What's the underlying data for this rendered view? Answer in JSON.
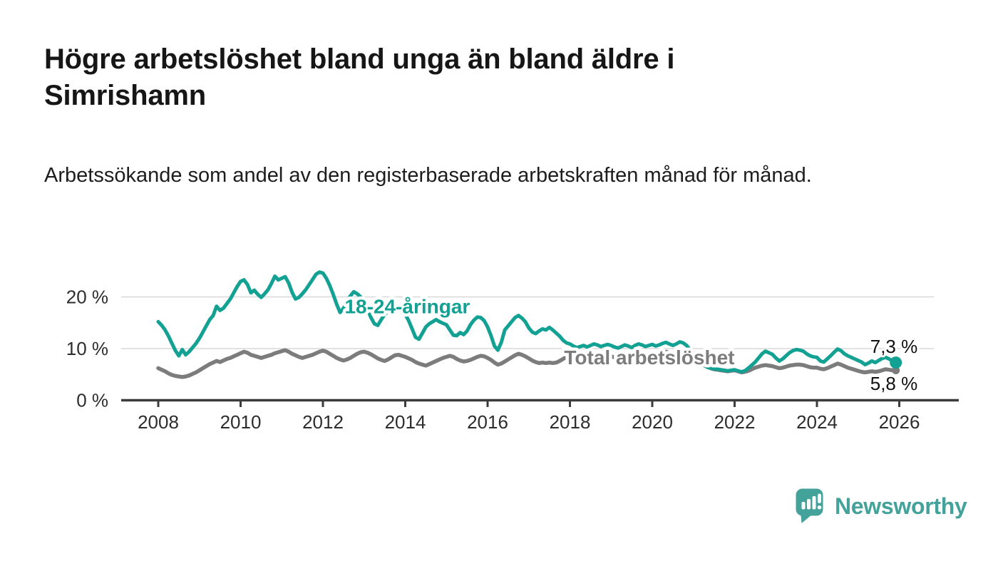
{
  "header": {
    "title": "Högre arbetslöshet bland unga än bland äldre i Simrishamn",
    "subtitle": "Arbetssökande som andel av den registerbaserade arbetskraften månad för månad."
  },
  "footer": {
    "brand": "Newsworthy",
    "logo_icon": "speech-bubble-bar-chart-icon"
  },
  "colors": {
    "youth_line": "#12a192",
    "total_line": "#7c7c7c",
    "axis": "#3c3c3c",
    "grid": "#d8d8d8",
    "tick_text": "#2d2d2d",
    "annotation_text": "#111111",
    "brand_teal": "#43a29a",
    "background": "#ffffff"
  },
  "chart_data": {
    "type": "line",
    "title": "Högre arbetslöshet bland unga än bland äldre i Simrishamn",
    "subtitle": "Arbetssökande som andel av den registerbaserade arbetskraften månad för månad.",
    "unit": "%",
    "x_axis": {
      "start_year": 2008,
      "step_months": 1,
      "end": "2025-12",
      "tick_years": [
        2008,
        2010,
        2012,
        2014,
        2016,
        2018,
        2020,
        2022,
        2024,
        2026
      ]
    },
    "y_axis": {
      "ylim": [
        0,
        26
      ],
      "ticks": [
        {
          "value": 0,
          "label": "0 %"
        },
        {
          "value": 10,
          "label": "10 %"
        },
        {
          "value": 20,
          "label": "20 %"
        }
      ]
    },
    "grid": true,
    "legend_position": "inline-labels",
    "annotations": [
      {
        "text": "7,3 %",
        "year": 2025.87,
        "value": 9.2
      },
      {
        "text": "5,8 %",
        "year": 2025.87,
        "value": 2.0
      }
    ],
    "series": [
      {
        "name": "Total arbetslöshet",
        "color": "#7c7c7c",
        "stroke_width": 5.5,
        "end_dot_radius": 5.5,
        "end_value_label": "5,8 %",
        "label_at": {
          "year": 2019.93,
          "value": 7.0
        },
        "values": [
          6.2,
          5.9,
          5.6,
          5.2,
          4.9,
          4.7,
          4.6,
          4.5,
          4.6,
          4.8,
          5.1,
          5.4,
          5.8,
          6.2,
          6.6,
          7.0,
          7.3,
          7.6,
          7.4,
          7.7,
          8.0,
          8.2,
          8.5,
          8.8,
          9.1,
          9.4,
          9.2,
          8.8,
          8.6,
          8.4,
          8.2,
          8.4,
          8.6,
          8.8,
          9.1,
          9.3,
          9.5,
          9.7,
          9.4,
          9.0,
          8.7,
          8.4,
          8.2,
          8.4,
          8.6,
          8.8,
          9.1,
          9.4,
          9.6,
          9.4,
          9.0,
          8.6,
          8.2,
          7.9,
          7.7,
          7.9,
          8.2,
          8.6,
          9.0,
          9.3,
          9.4,
          9.2,
          8.9,
          8.5,
          8.1,
          7.8,
          7.6,
          7.9,
          8.3,
          8.7,
          8.8,
          8.6,
          8.4,
          8.1,
          7.8,
          7.4,
          7.1,
          6.9,
          6.7,
          7.0,
          7.3,
          7.6,
          7.9,
          8.2,
          8.4,
          8.6,
          8.4,
          8.0,
          7.7,
          7.5,
          7.6,
          7.8,
          8.1,
          8.4,
          8.6,
          8.5,
          8.2,
          7.8,
          7.3,
          6.9,
          7.1,
          7.5,
          7.9,
          8.3,
          8.7,
          9.0,
          8.8,
          8.5,
          8.1,
          7.7,
          7.4,
          7.2,
          7.3,
          7.2,
          7.3,
          7.2,
          7.3,
          7.6,
          8.0,
          8.4,
          8.8,
          8.6,
          8.4,
          8.2,
          8.3,
          8.2,
          8.4,
          8.6,
          8.5,
          8.4,
          8.5,
          8.6,
          8.5,
          8.3,
          8.2,
          8.4,
          8.6,
          8.5,
          8.3,
          8.5,
          8.7,
          8.6,
          8.5,
          8.6,
          8.8,
          8.6,
          8.8,
          9.2,
          9.4,
          9.2,
          9.0,
          9.1,
          9.2,
          9.0,
          8.7,
          8.4,
          8.0,
          7.6,
          7.2,
          6.8,
          6.5,
          6.2,
          6.0,
          5.9,
          5.8,
          5.7,
          5.6,
          5.7,
          5.8,
          5.6,
          5.4,
          5.5,
          5.7,
          6.0,
          6.3,
          6.5,
          6.7,
          6.8,
          6.7,
          6.6,
          6.4,
          6.2,
          6.3,
          6.5,
          6.7,
          6.8,
          6.9,
          6.9,
          6.8,
          6.6,
          6.4,
          6.3,
          6.3,
          6.1,
          6.0,
          6.2,
          6.5,
          6.8,
          7.1,
          6.9,
          6.6,
          6.3,
          6.1,
          5.9,
          5.7,
          5.5,
          5.4,
          5.5,
          5.6,
          5.5,
          5.6,
          5.8,
          6.0,
          5.9,
          5.8,
          5.8
        ]
      },
      {
        "name": "18-24-åringar",
        "color": "#12a192",
        "stroke_width": 5,
        "end_dot_radius": 8.5,
        "end_value_label": "7,3 %",
        "label_at": {
          "year": 2014.05,
          "value": 16.8
        },
        "values": [
          15.2,
          14.5,
          13.6,
          12.4,
          11.0,
          9.6,
          8.6,
          9.8,
          8.8,
          9.4,
          10.2,
          11.0,
          12.0,
          13.2,
          14.4,
          15.6,
          16.4,
          18.2,
          17.4,
          17.8,
          18.7,
          19.6,
          20.8,
          22.0,
          23.0,
          23.3,
          22.4,
          20.8,
          21.3,
          20.5,
          19.9,
          20.6,
          21.4,
          22.6,
          24.0,
          23.3,
          23.6,
          23.9,
          22.7,
          20.9,
          19.6,
          19.9,
          20.6,
          21.4,
          22.4,
          23.4,
          24.4,
          24.8,
          24.6,
          23.6,
          22.2,
          20.5,
          18.6,
          17.0,
          17.8,
          19.2,
          20.2,
          21.0,
          20.6,
          20.0,
          19.0,
          17.6,
          16.0,
          14.8,
          14.5,
          15.6,
          16.6,
          17.2,
          17.8,
          18.0,
          17.6,
          17.2,
          16.6,
          15.4,
          13.8,
          12.2,
          11.8,
          13.0,
          14.2,
          14.8,
          15.2,
          15.6,
          15.2,
          14.9,
          14.6,
          13.6,
          12.6,
          12.5,
          13.1,
          12.7,
          13.4,
          14.6,
          15.5,
          16.1,
          16.0,
          15.4,
          14.2,
          12.5,
          10.5,
          9.7,
          11.2,
          13.6,
          14.4,
          15.2,
          16.0,
          16.4,
          15.9,
          15.2,
          14.0,
          13.2,
          12.9,
          13.4,
          13.8,
          13.6,
          14.1,
          13.6,
          13.0,
          12.4,
          11.6,
          11.1,
          10.9,
          10.5,
          10.2,
          10.4,
          10.6,
          10.3,
          10.6,
          10.9,
          10.7,
          10.4,
          10.6,
          10.8,
          10.6,
          10.3,
          10.1,
          10.4,
          10.7,
          10.5,
          10.2,
          10.6,
          10.9,
          10.7,
          10.4,
          10.6,
          10.8,
          10.5,
          10.7,
          11.0,
          11.2,
          10.9,
          10.6,
          10.9,
          11.3,
          11.1,
          10.6,
          9.8,
          9.0,
          8.2,
          7.4,
          6.8,
          6.4,
          6.2,
          6.1,
          6.0,
          5.9,
          5.8,
          5.7,
          5.8,
          5.9,
          5.7,
          5.5,
          5.7,
          6.2,
          6.8,
          7.4,
          8.2,
          9.0,
          9.5,
          9.2,
          8.9,
          8.2,
          7.6,
          8.0,
          8.6,
          9.2,
          9.6,
          9.8,
          9.7,
          9.5,
          9.0,
          8.6,
          8.4,
          8.3,
          7.6,
          7.4,
          8.0,
          8.6,
          9.3,
          9.9,
          9.6,
          9.0,
          8.6,
          8.3,
          8.0,
          7.7,
          7.4,
          6.9,
          7.2,
          7.6,
          7.3,
          7.7,
          8.1,
          8.3,
          8.0,
          7.6,
          7.3
        ]
      }
    ]
  }
}
